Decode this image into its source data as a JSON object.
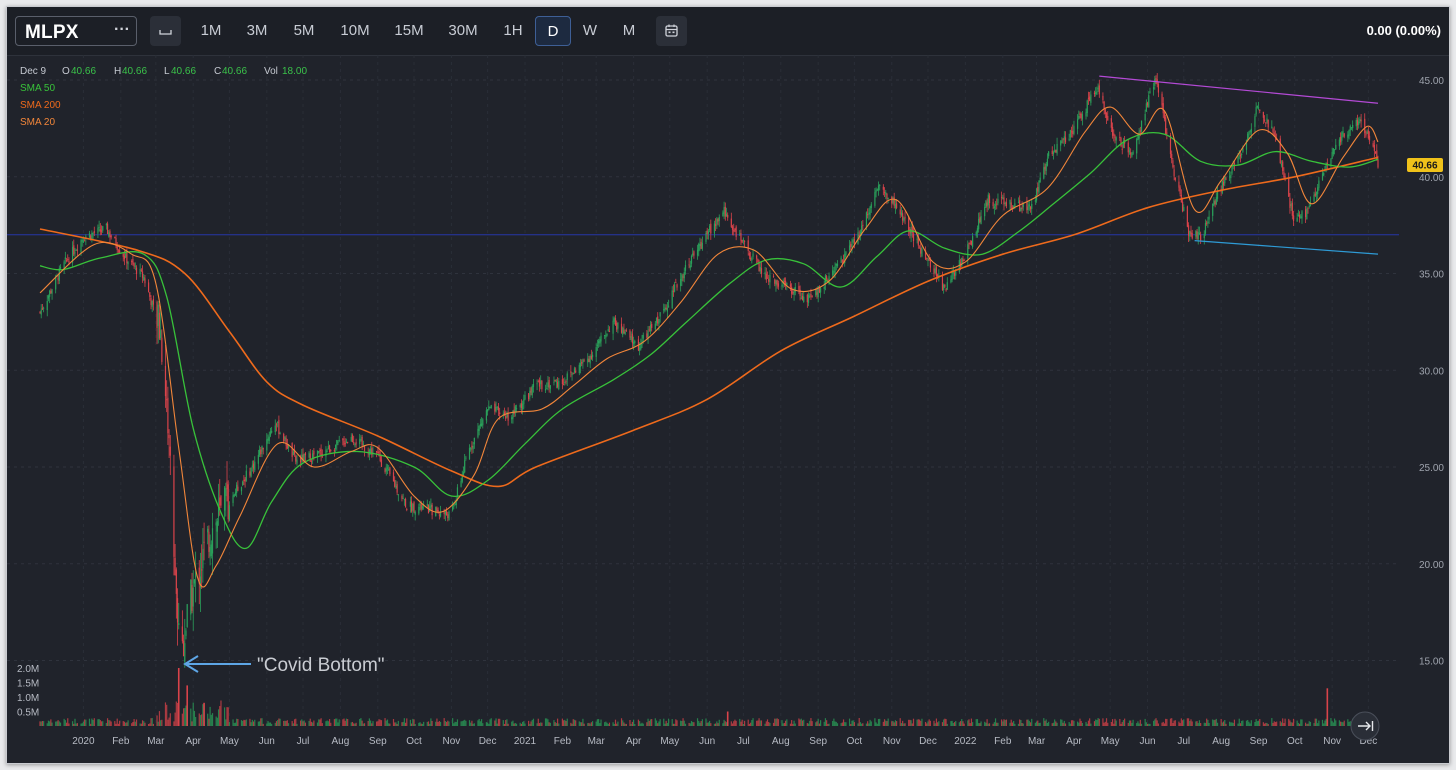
{
  "toolbar": {
    "symbol": "MLPX",
    "more_icon": "ellipsis-icon",
    "candle_icon": "candlestick-icon",
    "intervals": [
      "1M",
      "3M",
      "5M",
      "10M",
      "15M",
      "30M",
      "1H",
      "D",
      "W",
      "M"
    ],
    "active_interval": "D",
    "calendar_icon": "calendar-icon",
    "change_readout": "0.00 (0.00%)"
  },
  "legend": {
    "date": "Dec 9",
    "o_label": "O",
    "o_value": "40.66",
    "h_label": "H",
    "h_value": "40.66",
    "l_label": "L",
    "l_value": "40.66",
    "c_label": "C",
    "c_value": "40.66",
    "vol_label": "Vol",
    "vol_value": "18.00",
    "indicators": [
      "SMA 50",
      "SMA 200",
      "SMA 20"
    ]
  },
  "annotation": {
    "text": "\"Covid Bottom\""
  },
  "last_price_badge": "40.66",
  "scroll_icon": "scroll-to-latest-icon",
  "colors": {
    "background": "#20232b",
    "up_candle": "#2aa05a",
    "down_candle": "#d9434a",
    "sma50": "#38c23a",
    "sma200": "#ee6a1c",
    "sma20": "#f2863a",
    "resistance_line": "#b44ad6",
    "support_line": "#2e9bd6",
    "horizontal_line": "#2636a8",
    "arrow": "#5ea6e6",
    "price_badge": "#f0c21a"
  },
  "chart_data": {
    "type": "candlestick",
    "symbol": "MLPX",
    "interval": "D",
    "y_axis_labels": [
      "45.00",
      "40.00",
      "35.00",
      "30.00",
      "25.00",
      "20.00",
      "15.00"
    ],
    "ylim": [
      13.6,
      46.4
    ],
    "volume_axis_labels": [
      "2.0M",
      "1.5M",
      "1.0M",
      "0.5M"
    ],
    "x_axis_labels": [
      "2020",
      "Feb",
      "Mar",
      "Apr",
      "May",
      "Jun",
      "Jul",
      "Aug",
      "Sep",
      "Oct",
      "Nov",
      "Dec",
      "2021",
      "Feb",
      "Mar",
      "Apr",
      "May",
      "Jun",
      "Jul",
      "Aug",
      "Sep",
      "Oct",
      "Nov",
      "Dec",
      "2022",
      "Feb",
      "Mar",
      "Apr",
      "May",
      "Jun",
      "Jul",
      "Aug",
      "Sep",
      "Oct",
      "Nov",
      "Dec"
    ],
    "close_path": [
      {
        "d": "2019-11-26",
        "v": 33.0
      },
      {
        "d": "2019-12-15",
        "v": 35.4
      },
      {
        "d": "2020-01-01",
        "v": 36.9
      },
      {
        "d": "2020-01-20",
        "v": 37.3
      },
      {
        "d": "2020-02-05",
        "v": 35.8
      },
      {
        "d": "2020-02-20",
        "v": 34.8
      },
      {
        "d": "2020-03-05",
        "v": 32.0
      },
      {
        "d": "2020-03-12",
        "v": 26.5
      },
      {
        "d": "2020-03-18",
        "v": 18.0
      },
      {
        "d": "2020-03-23",
        "v": 15.8
      },
      {
        "d": "2020-03-31",
        "v": 18.4
      },
      {
        "d": "2020-04-15",
        "v": 21.6
      },
      {
        "d": "2020-05-01",
        "v": 23.3
      },
      {
        "d": "2020-05-20",
        "v": 25.0
      },
      {
        "d": "2020-06-08",
        "v": 27.3
      },
      {
        "d": "2020-06-25",
        "v": 25.3
      },
      {
        "d": "2020-07-15",
        "v": 25.7
      },
      {
        "d": "2020-08-10",
        "v": 26.5
      },
      {
        "d": "2020-09-01",
        "v": 25.6
      },
      {
        "d": "2020-09-25",
        "v": 23.0
      },
      {
        "d": "2020-10-15",
        "v": 22.8
      },
      {
        "d": "2020-11-01",
        "v": 22.5
      },
      {
        "d": "2020-11-15",
        "v": 25.8
      },
      {
        "d": "2020-12-01",
        "v": 28.0
      },
      {
        "d": "2020-12-20",
        "v": 27.6
      },
      {
        "d": "2021-01-10",
        "v": 29.2
      },
      {
        "d": "2021-02-01",
        "v": 29.4
      },
      {
        "d": "2021-02-25",
        "v": 30.8
      },
      {
        "d": "2021-03-15",
        "v": 32.5
      },
      {
        "d": "2021-04-05",
        "v": 31.2
      },
      {
        "d": "2021-04-25",
        "v": 33.0
      },
      {
        "d": "2021-05-15",
        "v": 35.4
      },
      {
        "d": "2021-06-05",
        "v": 37.4
      },
      {
        "d": "2021-06-15",
        "v": 38.2
      },
      {
        "d": "2021-07-01",
        "v": 36.5
      },
      {
        "d": "2021-07-20",
        "v": 34.8
      },
      {
        "d": "2021-08-10",
        "v": 34.2
      },
      {
        "d": "2021-08-25",
        "v": 33.6
      },
      {
        "d": "2021-09-15",
        "v": 35.3
      },
      {
        "d": "2021-10-05",
        "v": 37.0
      },
      {
        "d": "2021-10-20",
        "v": 39.6
      },
      {
        "d": "2021-11-05",
        "v": 38.4
      },
      {
        "d": "2021-11-25",
        "v": 36.2
      },
      {
        "d": "2021-12-15",
        "v": 34.2
      },
      {
        "d": "2022-01-01",
        "v": 36.0
      },
      {
        "d": "2022-01-20",
        "v": 38.8
      },
      {
        "d": "2022-02-05",
        "v": 38.6
      },
      {
        "d": "2022-02-25",
        "v": 38.4
      },
      {
        "d": "2022-03-10",
        "v": 41.0
      },
      {
        "d": "2022-04-01",
        "v": 42.5
      },
      {
        "d": "2022-04-20",
        "v": 44.6
      },
      {
        "d": "2022-05-05",
        "v": 42.0
      },
      {
        "d": "2022-05-20",
        "v": 41.2
      },
      {
        "d": "2022-06-08",
        "v": 45.3
      },
      {
        "d": "2022-06-20",
        "v": 41.0
      },
      {
        "d": "2022-07-05",
        "v": 37.2
      },
      {
        "d": "2022-07-15",
        "v": 36.8
      },
      {
        "d": "2022-08-01",
        "v": 39.5
      },
      {
        "d": "2022-08-20",
        "v": 41.5
      },
      {
        "d": "2022-09-01",
        "v": 43.8
      },
      {
        "d": "2022-09-15",
        "v": 42.0
      },
      {
        "d": "2022-09-30",
        "v": 37.8
      },
      {
        "d": "2022-10-12",
        "v": 38.2
      },
      {
        "d": "2022-10-25",
        "v": 40.2
      },
      {
        "d": "2022-11-10",
        "v": 42.2
      },
      {
        "d": "2022-11-25",
        "v": 43.0
      },
      {
        "d": "2022-12-09",
        "v": 40.66
      }
    ],
    "volume_spikes": [
      {
        "d": "2020-03-20",
        "v": 2000000
      },
      {
        "d": "2020-03-27",
        "v": 1400000
      },
      {
        "d": "2020-04-10",
        "v": 800000
      },
      {
        "d": "2021-06-18",
        "v": 500000
      },
      {
        "d": "2022-10-28",
        "v": 1300000
      }
    ],
    "sma200": [
      {
        "d": "2019-11-26",
        "v": 37.3
      },
      {
        "d": "2020-02-15",
        "v": 36.2
      },
      {
        "d": "2020-03-25",
        "v": 35.0
      },
      {
        "d": "2020-05-01",
        "v": 32.0
      },
      {
        "d": "2020-06-01",
        "v": 29.4
      },
      {
        "d": "2020-07-01",
        "v": 28.2
      },
      {
        "d": "2020-09-01",
        "v": 26.6
      },
      {
        "d": "2020-11-01",
        "v": 24.8
      },
      {
        "d": "2020-12-10",
        "v": 24.0
      },
      {
        "d": "2021-01-10",
        "v": 25.0
      },
      {
        "d": "2021-04-01",
        "v": 26.9
      },
      {
        "d": "2021-06-01",
        "v": 28.5
      },
      {
        "d": "2021-08-01",
        "v": 31.0
      },
      {
        "d": "2021-10-01",
        "v": 32.8
      },
      {
        "d": "2021-12-01",
        "v": 34.6
      },
      {
        "d": "2022-02-01",
        "v": 36.0
      },
      {
        "d": "2022-04-01",
        "v": 37.0
      },
      {
        "d": "2022-06-01",
        "v": 38.4
      },
      {
        "d": "2022-08-01",
        "v": 39.3
      },
      {
        "d": "2022-10-01",
        "v": 40.0
      },
      {
        "d": "2022-12-09",
        "v": 41.0
      }
    ],
    "sma50": [
      {
        "d": "2019-11-26",
        "v": 35.4
      },
      {
        "d": "2019-12-15",
        "v": 35.2
      },
      {
        "d": "2020-01-15",
        "v": 35.8
      },
      {
        "d": "2020-02-20",
        "v": 36.0
      },
      {
        "d": "2020-03-10",
        "v": 33.8
      },
      {
        "d": "2020-04-01",
        "v": 27.0
      },
      {
        "d": "2020-04-25",
        "v": 22.5
      },
      {
        "d": "2020-05-15",
        "v": 20.8
      },
      {
        "d": "2020-06-05",
        "v": 23.2
      },
      {
        "d": "2020-07-01",
        "v": 25.2
      },
      {
        "d": "2020-08-15",
        "v": 25.8
      },
      {
        "d": "2020-10-01",
        "v": 25.0
      },
      {
        "d": "2020-11-01",
        "v": 23.5
      },
      {
        "d": "2020-12-01",
        "v": 24.3
      },
      {
        "d": "2021-01-01",
        "v": 26.2
      },
      {
        "d": "2021-02-01",
        "v": 28.0
      },
      {
        "d": "2021-03-15",
        "v": 29.5
      },
      {
        "d": "2021-04-15",
        "v": 30.8
      },
      {
        "d": "2021-05-15",
        "v": 32.5
      },
      {
        "d": "2021-06-20",
        "v": 34.5
      },
      {
        "d": "2021-07-20",
        "v": 35.7
      },
      {
        "d": "2021-08-20",
        "v": 35.5
      },
      {
        "d": "2021-09-20",
        "v": 34.3
      },
      {
        "d": "2021-10-20",
        "v": 35.9
      },
      {
        "d": "2021-11-15",
        "v": 37.2
      },
      {
        "d": "2021-12-15",
        "v": 36.3
      },
      {
        "d": "2022-01-15",
        "v": 36.0
      },
      {
        "d": "2022-02-15",
        "v": 37.2
      },
      {
        "d": "2022-03-15",
        "v": 38.6
      },
      {
        "d": "2022-04-15",
        "v": 40.2
      },
      {
        "d": "2022-05-15",
        "v": 41.9
      },
      {
        "d": "2022-06-15",
        "v": 42.2
      },
      {
        "d": "2022-07-15",
        "v": 40.8
      },
      {
        "d": "2022-08-15",
        "v": 40.6
      },
      {
        "d": "2022-09-15",
        "v": 41.3
      },
      {
        "d": "2022-10-15",
        "v": 40.8
      },
      {
        "d": "2022-11-15",
        "v": 40.5
      },
      {
        "d": "2022-12-09",
        "v": 40.9
      }
    ],
    "sma20": [
      {
        "d": "2019-11-26",
        "v": 34.0
      },
      {
        "d": "2020-01-10",
        "v": 36.5
      },
      {
        "d": "2020-02-10",
        "v": 36.0
      },
      {
        "d": "2020-03-01",
        "v": 34.5
      },
      {
        "d": "2020-03-20",
        "v": 26.0
      },
      {
        "d": "2020-04-05",
        "v": 19.2
      },
      {
        "d": "2020-04-20",
        "v": 19.9
      },
      {
        "d": "2020-05-10",
        "v": 22.5
      },
      {
        "d": "2020-06-10",
        "v": 26.2
      },
      {
        "d": "2020-07-10",
        "v": 25.0
      },
      {
        "d": "2020-08-10",
        "v": 25.8
      },
      {
        "d": "2020-09-01",
        "v": 26.0
      },
      {
        "d": "2020-10-01",
        "v": 23.5
      },
      {
        "d": "2020-10-25",
        "v": 22.7
      },
      {
        "d": "2020-11-20",
        "v": 24.6
      },
      {
        "d": "2020-12-10",
        "v": 27.5
      },
      {
        "d": "2021-01-15",
        "v": 28.0
      },
      {
        "d": "2021-02-10",
        "v": 29.2
      },
      {
        "d": "2021-03-10",
        "v": 30.6
      },
      {
        "d": "2021-04-10",
        "v": 31.5
      },
      {
        "d": "2021-05-10",
        "v": 33.5
      },
      {
        "d": "2021-06-10",
        "v": 36.0
      },
      {
        "d": "2021-07-10",
        "v": 36.2
      },
      {
        "d": "2021-08-10",
        "v": 34.2
      },
      {
        "d": "2021-09-10",
        "v": 34.6
      },
      {
        "d": "2021-10-10",
        "v": 37.3
      },
      {
        "d": "2021-11-05",
        "v": 38.8
      },
      {
        "d": "2021-12-05",
        "v": 35.6
      },
      {
        "d": "2022-01-01",
        "v": 35.6
      },
      {
        "d": "2022-02-01",
        "v": 38.0
      },
      {
        "d": "2022-03-10",
        "v": 39.4
      },
      {
        "d": "2022-04-10",
        "v": 42.3
      },
      {
        "d": "2022-05-01",
        "v": 43.6
      },
      {
        "d": "2022-05-25",
        "v": 42.2
      },
      {
        "d": "2022-06-15",
        "v": 43.4
      },
      {
        "d": "2022-07-10",
        "v": 38.3
      },
      {
        "d": "2022-08-01",
        "v": 39.8
      },
      {
        "d": "2022-09-01",
        "v": 42.4
      },
      {
        "d": "2022-09-25",
        "v": 41.2
      },
      {
        "d": "2022-10-15",
        "v": 38.6
      },
      {
        "d": "2022-11-10",
        "v": 41.0
      },
      {
        "d": "2022-11-30",
        "v": 42.6
      },
      {
        "d": "2022-12-09",
        "v": 41.8
      }
    ],
    "trendlines": [
      {
        "name": "resistance",
        "from": {
          "d": "2022-04-22",
          "v": 45.2
        },
        "to": {
          "d": "2022-12-09",
          "v": 43.8
        }
      },
      {
        "name": "support",
        "from": {
          "d": "2022-07-10",
          "v": 36.7
        },
        "to": {
          "d": "2022-12-09",
          "v": 36.0
        }
      },
      {
        "name": "horizontal",
        "from": {
          "d": "2019-11-26",
          "v": 37.0
        },
        "to": {
          "d": "2022-12-09",
          "v": 37.0
        }
      }
    ],
    "annotation_point": {
      "d": "2020-03-23",
      "v": 15.0
    },
    "grid": true
  }
}
